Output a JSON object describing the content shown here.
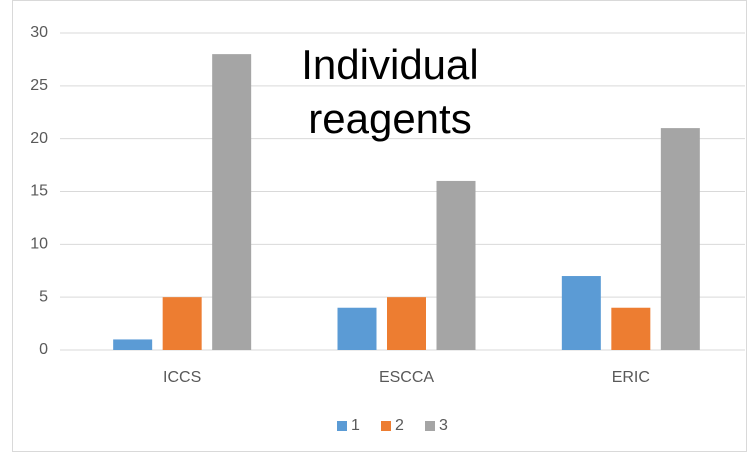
{
  "chart_data": {
    "type": "bar",
    "title": "Individual reagents",
    "categories": [
      "ICCS",
      "ESCCA",
      "ERIC"
    ],
    "series": [
      {
        "name": "1",
        "color": "#5b9bd5",
        "values": [
          1,
          4,
          7
        ]
      },
      {
        "name": "2",
        "color": "#ed7d31",
        "values": [
          5,
          5,
          4
        ]
      },
      {
        "name": "3",
        "color": "#a5a5a5",
        "values": [
          28,
          16,
          21
        ]
      }
    ],
    "ylim": [
      0,
      30
    ],
    "yticks": [
      0,
      5,
      10,
      15,
      20,
      25,
      30
    ],
    "grid": true,
    "legend": "bottom"
  }
}
